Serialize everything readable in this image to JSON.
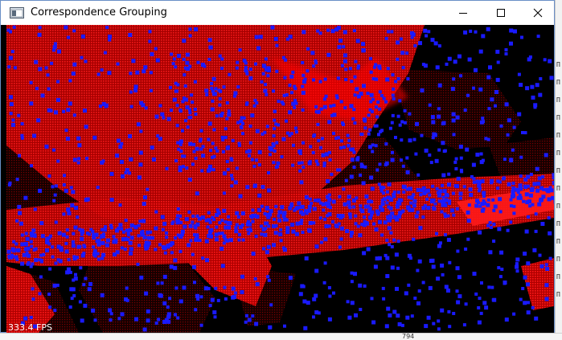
{
  "window": {
    "title": "Correspondence Grouping",
    "app_icon": "app-window-icon",
    "controls": {
      "minimize_icon": "minimize-icon",
      "maximize_icon": "maximize-icon",
      "close_icon": "close-icon"
    },
    "border_color": "#6a8fc7"
  },
  "viewer": {
    "fps_text": "333.4 FPS",
    "background_color": "#000000",
    "model_point_color": "#ff0000",
    "keypoint_color": "#1a1aff",
    "scene_shade_color": "#3a0000"
  },
  "background": {
    "right_edge_glyphs": "Π\nΠ\nΠ\nΠ\nΠ\nΠ\nΠ\nΠ\nΠ\nΠ\nΠ\nΠ\nΠ\nΠ",
    "bottom_fragment": "794"
  }
}
